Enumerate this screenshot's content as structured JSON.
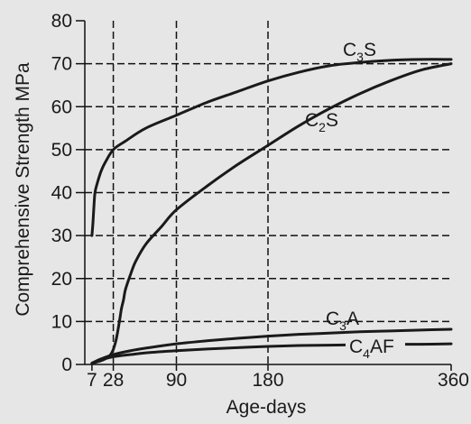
{
  "chart_data": {
    "type": "line",
    "title": "",
    "xlabel": "Age-days",
    "ylabel": "Comprehensive Strength MPa",
    "xlim": [
      0,
      360
    ],
    "ylim": [
      0,
      80
    ],
    "x_ticks": [
      7,
      28,
      90,
      180,
      360
    ],
    "y_ticks": [
      0,
      10,
      20,
      30,
      40,
      50,
      60,
      70,
      80
    ],
    "grid": "dashed",
    "series": [
      {
        "name": "C3S",
        "label_main": "C",
        "label_sub": "3",
        "label_tail": "S",
        "x": [
          7,
          8,
          9,
          10,
          12,
          16,
          20,
          28,
          40,
          60,
          90,
          120,
          150,
          180,
          210,
          240,
          270,
          300,
          330,
          360
        ],
        "y": [
          30,
          33,
          37,
          40,
          42,
          45,
          47,
          50,
          52,
          55,
          58,
          61,
          63.5,
          66,
          68,
          69.5,
          70.3,
          70.8,
          71,
          71
        ]
      },
      {
        "name": "C2S",
        "label_main": "C",
        "label_sub": "2",
        "label_tail": "S",
        "x": [
          7,
          15,
          20,
          25,
          28,
          31,
          34,
          36,
          38,
          40,
          45,
          50,
          60,
          75,
          90,
          120,
          150,
          180,
          210,
          240,
          270,
          300,
          330,
          360
        ],
        "y": [
          0.3,
          0.8,
          1.3,
          2.2,
          3.5,
          6,
          10,
          13,
          15,
          17.5,
          21,
          24,
          28,
          32,
          36,
          41.5,
          46.5,
          51,
          55.5,
          59.5,
          63,
          66,
          68.5,
          70
        ]
      },
      {
        "name": "C3A",
        "label_main": "C",
        "label_sub": "3",
        "label_tail": "A",
        "x": [
          7,
          15,
          28,
          45,
          60,
          90,
          120,
          150,
          180,
          210,
          240,
          270,
          300,
          330,
          360
        ],
        "y": [
          0.3,
          1.2,
          2.3,
          3.2,
          3.8,
          4.8,
          5.5,
          6.1,
          6.6,
          7,
          7.3,
          7.6,
          7.8,
          8,
          8.2
        ]
      },
      {
        "name": "C4AF",
        "label_main": "C",
        "label_sub": "4",
        "label_tail": "AF",
        "x": [
          7,
          15,
          28,
          45,
          60,
          90,
          120,
          150,
          180,
          210,
          240,
          270,
          300,
          330,
          360
        ],
        "y": [
          0.3,
          1.0,
          1.8,
          2.3,
          2.7,
          3.2,
          3.6,
          3.9,
          4.2,
          4.4,
          4.5,
          4.6,
          4.7,
          4.7,
          4.8
        ]
      }
    ]
  }
}
